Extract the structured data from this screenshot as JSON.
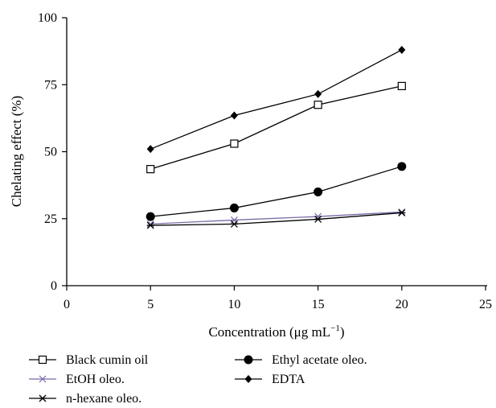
{
  "chart_data": {
    "type": "line",
    "xlabel": "Concentration (μg mL",
    "xlabel_sup": "−1",
    "xlabel_tail": ")",
    "ylabel": "Chelating effect (%)",
    "xlim": [
      0,
      25
    ],
    "ylim": [
      0,
      100
    ],
    "xticks": [
      0,
      5,
      10,
      15,
      20,
      25
    ],
    "yticks": [
      0,
      25,
      50,
      75,
      100
    ],
    "x": [
      5,
      10,
      15,
      20
    ],
    "grid": false,
    "legend_position": "bottom-left",
    "series": [
      {
        "name": "Black cumin oil",
        "values": [
          43.5,
          53,
          67.5,
          74.5
        ],
        "marker": "open-square",
        "color": "#000000"
      },
      {
        "name": "Ethyl acetate oleo.",
        "values": [
          25.8,
          29,
          35,
          44.5
        ],
        "marker": "filled-circle",
        "color": "#000000"
      },
      {
        "name": "EtOH oleo.",
        "values": [
          23,
          24.5,
          25.8,
          27.5
        ],
        "marker": "x",
        "color": "#7b6aa8"
      },
      {
        "name": "EDTA",
        "values": [
          51,
          63.5,
          71.5,
          88
        ],
        "marker": "filled-diamond",
        "color": "#000000"
      },
      {
        "name": "n-hexane oleo.",
        "values": [
          22.5,
          23,
          24.8,
          27.2
        ],
        "marker": "asterisk",
        "color": "#000000"
      }
    ]
  }
}
